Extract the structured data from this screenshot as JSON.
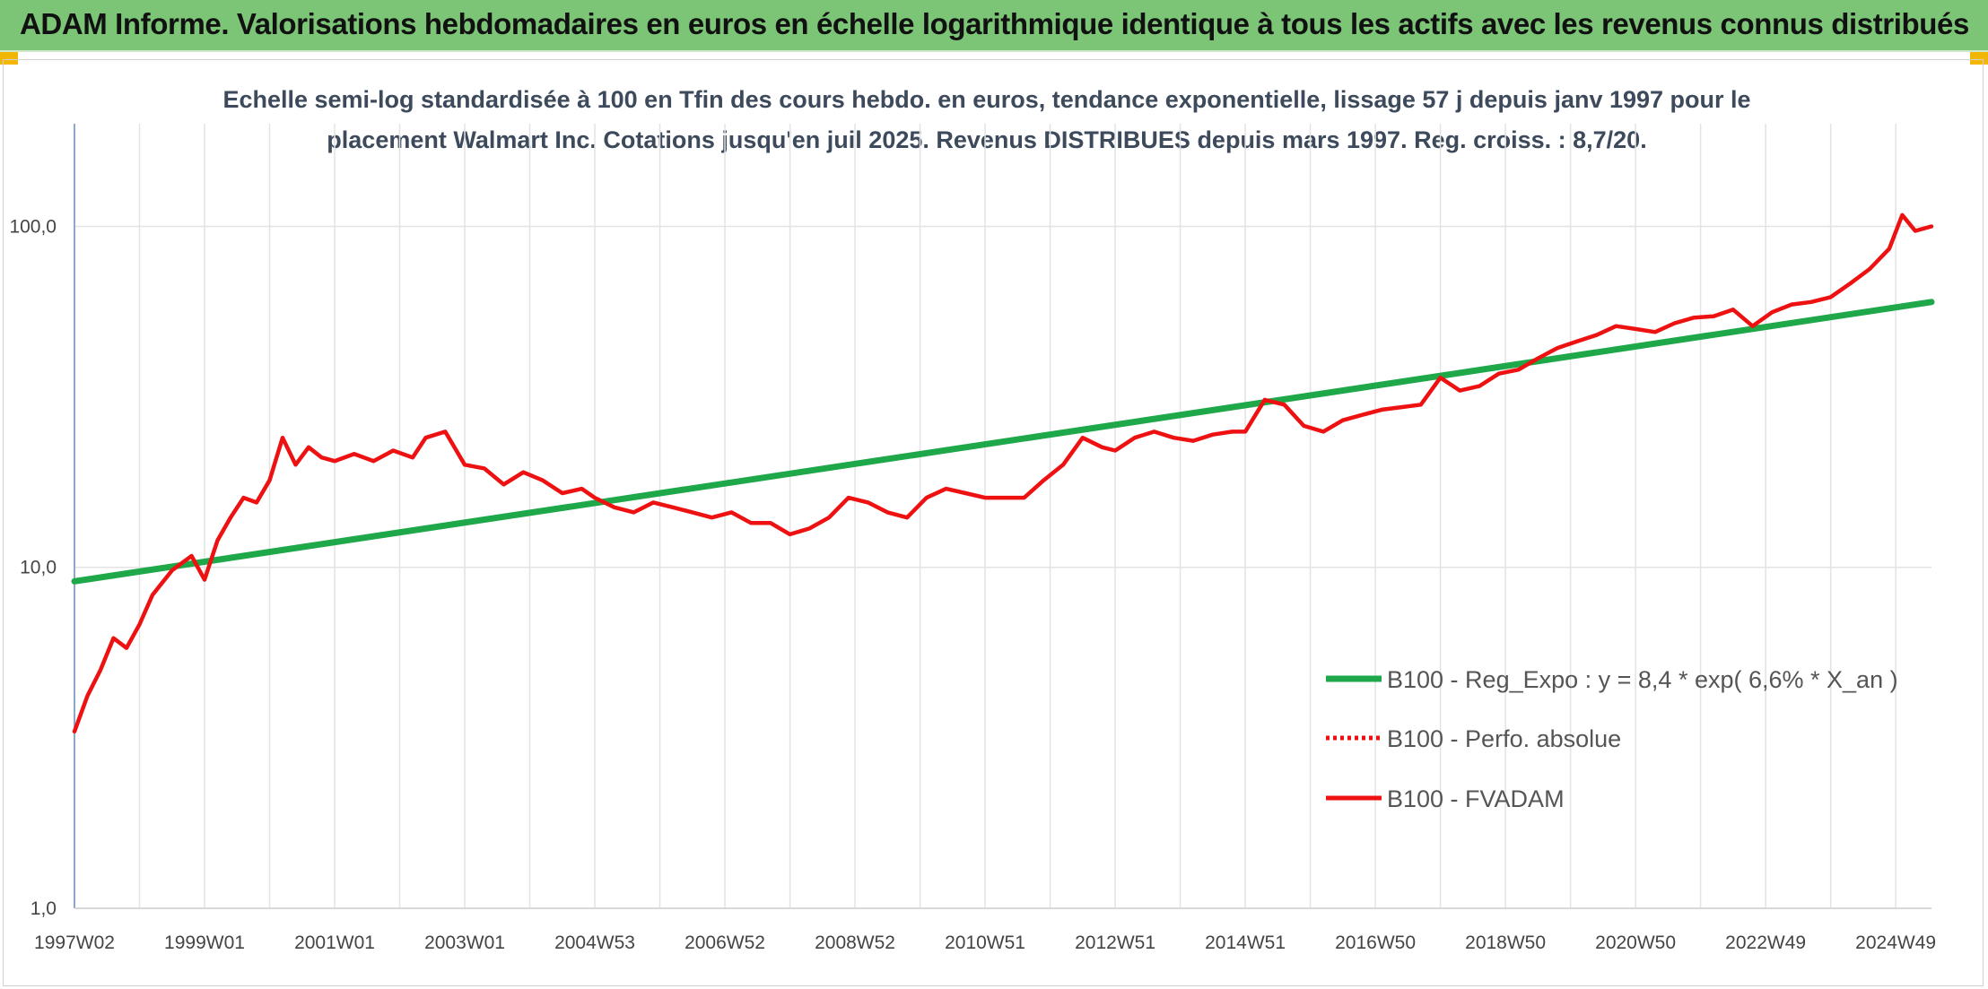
{
  "header": {
    "title": "ADAM Informe. Valorisations hebdomadaires en euros en échelle logarithmique identique à tous les actifs avec les revenus connus distribués"
  },
  "chart_data": {
    "type": "line",
    "title_line1": "Echelle semi-log standardisée à 100 en Tfin des cours hebdo. en euros, tendance exponentielle, lissage 57 j depuis janv 1997 pour le",
    "title_line2": "placement Walmart Inc. Cotations jusqu'en juil 2025. Revenus DISTRIBUES depuis mars 1997. Reg. croiss. : 8,7/20.",
    "y_scale": "log",
    "ylim": [
      1,
      200
    ],
    "xlim": [
      1997.0,
      2025.55
    ],
    "y_ticks": [
      {
        "value": 1,
        "label": "1,0"
      },
      {
        "value": 10,
        "label": "10,0"
      },
      {
        "value": 100,
        "label": "100,0"
      }
    ],
    "x_ticks": [
      {
        "value": 1997.0,
        "label": "1997W02"
      },
      {
        "value": 1999.0,
        "label": "1999W01"
      },
      {
        "value": 2001.0,
        "label": "2001W01"
      },
      {
        "value": 2003.0,
        "label": "2003W01"
      },
      {
        "value": 2005.0,
        "label": "2004W53"
      },
      {
        "value": 2007.0,
        "label": "2006W52"
      },
      {
        "value": 2009.0,
        "label": "2008W52"
      },
      {
        "value": 2011.0,
        "label": "2010W51"
      },
      {
        "value": 2013.0,
        "label": "2012W51"
      },
      {
        "value": 2015.0,
        "label": "2014W51"
      },
      {
        "value": 2017.0,
        "label": "2016W50"
      },
      {
        "value": 2019.0,
        "label": "2018W50"
      },
      {
        "value": 2021.0,
        "label": "2020W50"
      },
      {
        "value": 2023.0,
        "label": "2022W49"
      },
      {
        "value": 2025.0,
        "label": "2024W49"
      }
    ],
    "minor_x_ticks": [
      1998.0,
      2000.0,
      2002.0,
      2004.0,
      2006.0,
      2008.0,
      2010.0,
      2012.0,
      2014.0,
      2016.0,
      2018.0,
      2020.0,
      2022.0,
      2024.0
    ],
    "grid": true,
    "legend_position": "bottom-right",
    "series": [
      {
        "name": "B100 - Reg_Expo : y = 8,4 * exp( 6,6% *  X_an )",
        "color": "#1fa84a",
        "style": "solid",
        "x": [
          1997.0,
          2025.55
        ],
        "y": [
          9.1,
          60.0
        ]
      },
      {
        "name": "B100 - Perfo. absolue",
        "color": "#ee1111",
        "style": "dotted",
        "x": [],
        "y": []
      },
      {
        "name": "B100 - FVADAM",
        "color": "#ee1111",
        "style": "solid",
        "x": [
          1997.0,
          1997.2,
          1997.4,
          1997.6,
          1997.8,
          1998.0,
          1998.2,
          1998.5,
          1998.8,
          1999.0,
          1999.2,
          1999.4,
          1999.6,
          1999.8,
          2000.0,
          2000.2,
          2000.4,
          2000.6,
          2000.8,
          2001.0,
          2001.3,
          2001.6,
          2001.9,
          2002.2,
          2002.4,
          2002.7,
          2003.0,
          2003.3,
          2003.6,
          2003.9,
          2004.2,
          2004.5,
          2004.8,
          2005.0,
          2005.3,
          2005.6,
          2005.9,
          2006.2,
          2006.5,
          2006.8,
          2007.1,
          2007.4,
          2007.7,
          2008.0,
          2008.3,
          2008.6,
          2008.9,
          2009.2,
          2009.5,
          2009.8,
          2010.1,
          2010.4,
          2010.7,
          2011.0,
          2011.3,
          2011.6,
          2011.9,
          2012.2,
          2012.5,
          2012.8,
          2013.0,
          2013.3,
          2013.6,
          2013.9,
          2014.2,
          2014.5,
          2014.8,
          2015.0,
          2015.3,
          2015.6,
          2015.9,
          2016.2,
          2016.5,
          2016.8,
          2017.1,
          2017.4,
          2017.7,
          2018.0,
          2018.3,
          2018.6,
          2018.9,
          2019.2,
          2019.5,
          2019.8,
          2020.1,
          2020.4,
          2020.7,
          2021.0,
          2021.3,
          2021.6,
          2021.9,
          2022.2,
          2022.5,
          2022.8,
          2023.1,
          2023.4,
          2023.7,
          2024.0,
          2024.3,
          2024.6,
          2024.9,
          2025.1,
          2025.3,
          2025.55
        ],
        "y": [
          3.3,
          4.2,
          5.0,
          6.2,
          5.8,
          6.8,
          8.3,
          9.8,
          10.8,
          9.2,
          12.0,
          14.0,
          16.0,
          15.5,
          18.0,
          24.0,
          20.0,
          22.5,
          21.0,
          20.5,
          21.5,
          20.5,
          22.0,
          21.0,
          24.0,
          25.0,
          20.0,
          19.5,
          17.5,
          19.0,
          18.0,
          16.5,
          17.0,
          16.0,
          15.0,
          14.5,
          15.5,
          15.0,
          14.5,
          14.0,
          14.5,
          13.5,
          13.5,
          12.5,
          13.0,
          14.0,
          16.0,
          15.5,
          14.5,
          14.0,
          16.0,
          17.0,
          16.5,
          16.0,
          16.0,
          16.0,
          18.0,
          20.0,
          24.0,
          22.5,
          22.0,
          24.0,
          25.0,
          24.0,
          23.5,
          24.5,
          25.0,
          25.0,
          31.0,
          30.0,
          26.0,
          25.0,
          27.0,
          28.0,
          29.0,
          29.5,
          30.0,
          36.0,
          33.0,
          34.0,
          37.0,
          38.0,
          41.0,
          44.0,
          46.0,
          48.0,
          51.0,
          50.0,
          49.0,
          52.0,
          54.0,
          54.5,
          57.0,
          51.0,
          56.0,
          59.0,
          60.0,
          62.0,
          68.0,
          75.0,
          86.0,
          108.0,
          97.0,
          100.0
        ]
      }
    ]
  }
}
